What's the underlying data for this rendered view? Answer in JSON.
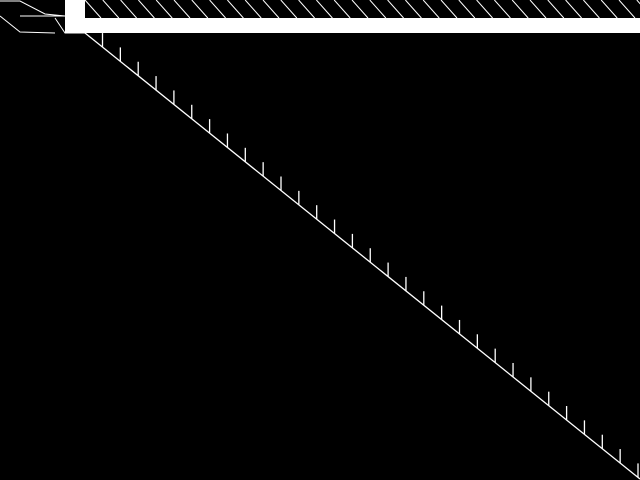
{
  "colors": {
    "background": "#000000",
    "foreground": "#ffffff"
  }
}
